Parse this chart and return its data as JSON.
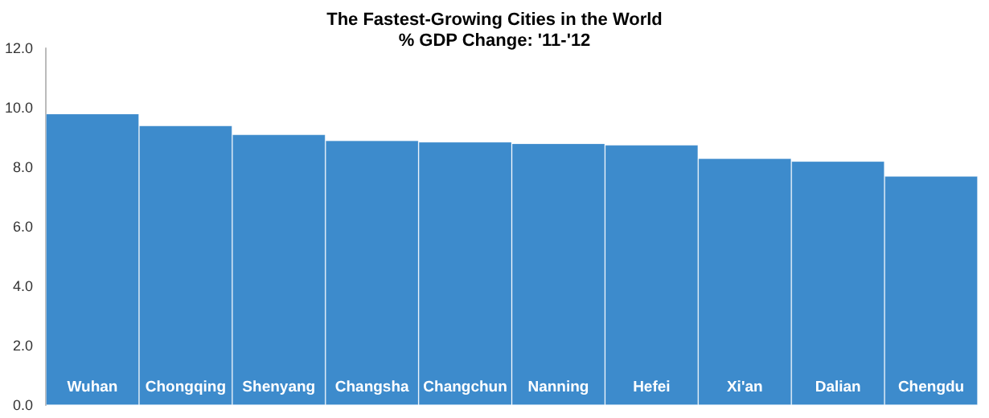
{
  "chart_data": {
    "type": "bar",
    "title": "The Fastest-Growing Cities in the World",
    "subtitle": "% GDP Change: '11-'12",
    "categories": [
      "Wuhan",
      "Chongqing",
      "Shenyang",
      "Changsha",
      "Changchun",
      "Nanning",
      "Hefei",
      "Xi'an",
      "Dalian",
      "Chengdu"
    ],
    "values": [
      9.8,
      9.4,
      9.1,
      8.9,
      8.85,
      8.8,
      8.75,
      8.3,
      8.2,
      7.7
    ],
    "color": "#3d8bcc",
    "ylim": [
      0,
      12
    ],
    "yticks": [
      {
        "value": 0,
        "label": "0.0"
      },
      {
        "value": 2,
        "label": "2.0"
      },
      {
        "value": 4,
        "label": "4.0"
      },
      {
        "value": 6,
        "label": "6.0"
      },
      {
        "value": 8,
        "label": "8.0"
      },
      {
        "value": 10,
        "label": "10.0"
      },
      {
        "value": 12,
        "label": "12.0"
      }
    ],
    "grid": false
  }
}
